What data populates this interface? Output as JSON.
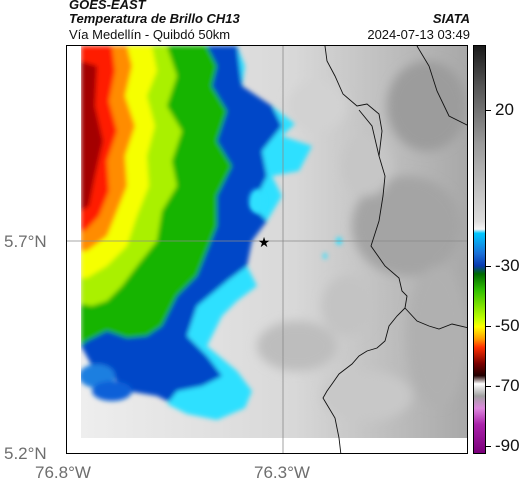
{
  "header": {
    "title_line1": "GOES-EAST",
    "title_line2": "Temperatura de Brillo CH13",
    "subtitle": "Vía Medellín - Quibdó 50km",
    "organization": "SIATA",
    "datetime": "2024-07-13 03:49"
  },
  "map": {
    "lat_labels": [
      "5.7°N",
      "5.2°N"
    ],
    "lon_labels": [
      "76.8°W",
      "76.3°W"
    ],
    "marker": "star-icon",
    "colors": {
      "cold_red": "#a40000",
      "orange": "#ff6600",
      "yellow": "#e8ff00",
      "green": "#14b400",
      "cyan": "#2ee0ff",
      "blue": "#0047c8",
      "light_gray": "#e4e4e4",
      "mid_gray": "#9a9a9a"
    }
  },
  "colorbar": {
    "ticks": [
      "20",
      "-30",
      "-50",
      "-70",
      "-90"
    ]
  }
}
